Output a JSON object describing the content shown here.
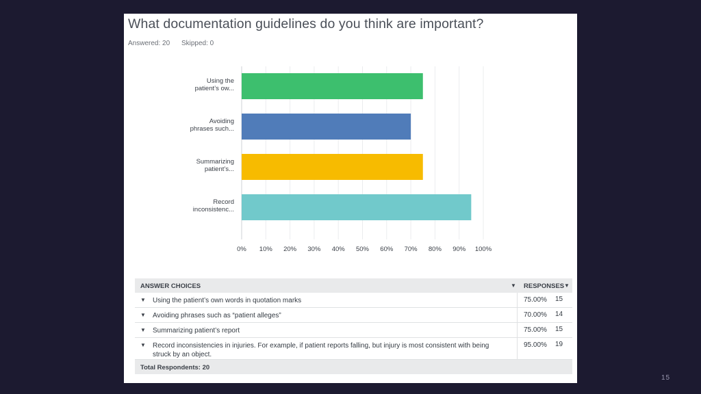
{
  "question": {
    "title": "What documentation guidelines do you think are important?",
    "answered_label": "Answered: 20",
    "skipped_label": "Skipped: 0"
  },
  "chart_data": {
    "type": "bar",
    "orientation": "horizontal",
    "categories": [
      "Using the patient's ow...",
      "Avoiding phrases such...",
      "Summarizing patient's...",
      "Record inconsistenc..."
    ],
    "category_lines": [
      [
        "Using the",
        "patient’s ow..."
      ],
      [
        "Avoiding",
        "phrases such..."
      ],
      [
        "Summarizing",
        "patient’s..."
      ],
      [
        "Record",
        "inconsistenc..."
      ]
    ],
    "values": [
      75,
      70,
      75,
      95
    ],
    "colors": [
      "#3dbf6e",
      "#507cb9",
      "#f7bb00",
      "#71c9cb"
    ],
    "xlim": [
      0,
      100
    ],
    "xticks": [
      "0%",
      "10%",
      "20%",
      "30%",
      "40%",
      "50%",
      "60%",
      "70%",
      "80%",
      "90%",
      "100%"
    ],
    "grid": true,
    "title": "",
    "xlabel": "",
    "ylabel": ""
  },
  "table": {
    "header_choices": "ANSWER CHOICES",
    "header_responses": "RESPONSES",
    "rows": [
      {
        "choice": "Using the patient’s own words in quotation marks",
        "pct": "75.00%",
        "count": "15"
      },
      {
        "choice": "Avoiding phrases such as “patient alleges”",
        "pct": "70.00%",
        "count": "14"
      },
      {
        "choice": "Summarizing patient’s report",
        "pct": "75.00%",
        "count": "15"
      },
      {
        "choice": "Record inconsistencies in injuries. For example, if patient reports falling, but injury is most consistent with being struck by an object.",
        "pct": "95.00%",
        "count": "19"
      }
    ],
    "footer": "Total Respondents: 20"
  },
  "slide": {
    "page_number": "15"
  },
  "icons": {
    "sort": "sort-caret-icon",
    "expand": "expand-caret-icon"
  }
}
